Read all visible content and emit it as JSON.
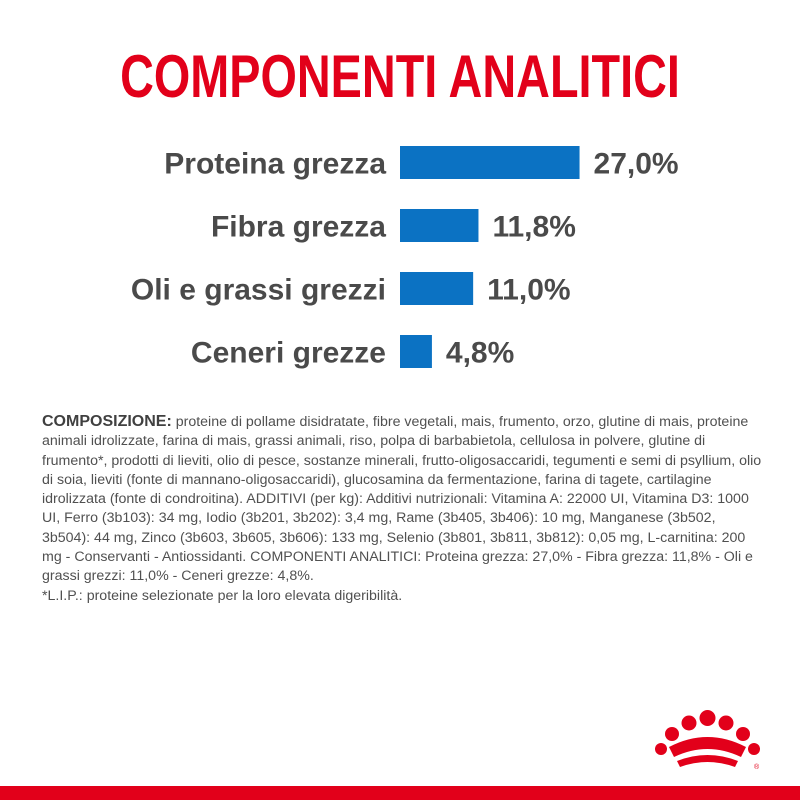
{
  "title": "COMPONENTI ANALITICI",
  "colors": {
    "brand_red": "#e2001a",
    "bar_blue": "#0b72c3",
    "text_gray": "#4a4a4a"
  },
  "chart_data": {
    "type": "bar",
    "orientation": "horizontal",
    "categories": [
      "Proteina grezza",
      "Fibra grezza",
      "Oli e grassi grezzi",
      "Ceneri grezze"
    ],
    "values": [
      27.0,
      11.8,
      11.0,
      4.8
    ],
    "value_labels": [
      "27,0%",
      "11,8%",
      "11,0%",
      "4,8%"
    ],
    "unit": "%",
    "xlabel": "",
    "ylabel": "",
    "grid": false,
    "legend": "none"
  },
  "composition": {
    "heading": "COMPOSIZIONE:",
    "text": " proteine di pollame disidratate, fibre vegetali, mais, frumento, orzo, glutine di mais, proteine animali idrolizzate, farina di mais, grassi animali, riso, polpa di barbabietola, cellulosa in polvere, glutine di frumento*, prodotti di lieviti, olio di pesce, sostanze minerali, frutto-oligosaccaridi, tegumenti e semi di psyllium, olio di soia, lieviti (fonte di mannano-oligosaccaridi), glucosamina da fermentazione, farina di tagete, cartilagine idrolizzata (fonte di condroitina). ADDITIVI (per kg): Additivi nutrizionali: Vitamina A: 22000 UI, Vitamina D3: 1000 UI, Ferro (3b103): 34 mg, Iodio (3b201, 3b202): 3,4 mg, Rame (3b405, 3b406): 10 mg, Manganese (3b502, 3b504): 44 mg, Zinco (3b603, 3b605, 3b606): 133 mg, Selenio (3b801, 3b811, 3b812): 0,05 mg, L-carnitina: 200 mg - Conservanti - Antiossidanti. COMPONENTI ANALITICI: Proteina grezza: 27,0% - Fibra grezza: 11,8% - Oli e grassi grezzi: 11,0% - Ceneri grezze: 4,8%.",
    "footnote": "*L.I.P.: proteine selezionate per la loro elevata digeribilità."
  },
  "logo": {
    "icon": "royal-canin-crown-icon"
  }
}
